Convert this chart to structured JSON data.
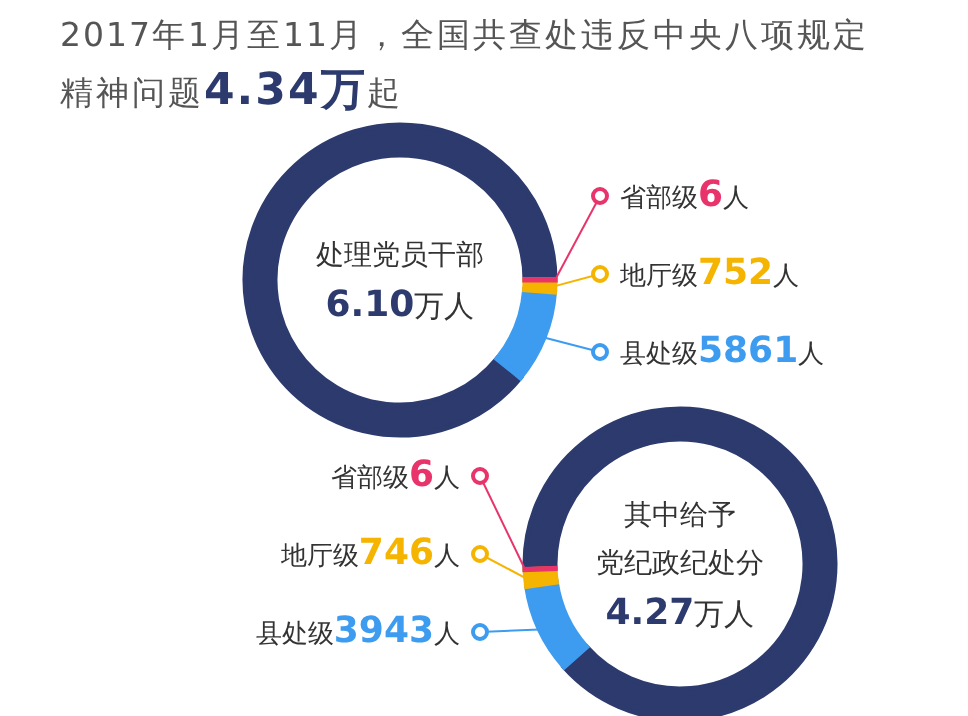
{
  "chart_data": [
    {
      "type": "donut",
      "title": "2017年1月至11月，全国共查处违反中央八项规定精神问题4.34万起",
      "categories": [
        "省部级",
        "地厅级",
        "县处级",
        null
      ],
      "values": [
        6,
        752,
        5861,
        54381
      ],
      "colors": [
        "#e8336b",
        "#f5b400",
        "#3d9cf0",
        "#2c3a6e"
      ],
      "value_labels": [
        "6人",
        "752人",
        "5861人",
        null
      ],
      "annotations": [
        "处理党员干部",
        "6.10万人"
      ],
      "legend": "right"
    },
    {
      "type": "donut",
      "categories": [
        "省部级",
        "地厅级",
        "县处级",
        null
      ],
      "values": [
        6,
        746,
        3943,
        38005
      ],
      "colors": [
        "#e8336b",
        "#f5b400",
        "#3d9cf0",
        "#2c3a6e"
      ],
      "value_labels": [
        "6人",
        "746人",
        "3943人",
        null
      ],
      "annotations": [
        "其中给予",
        "党纪政纪处分",
        "4.27万人"
      ]
    }
  ]
}
